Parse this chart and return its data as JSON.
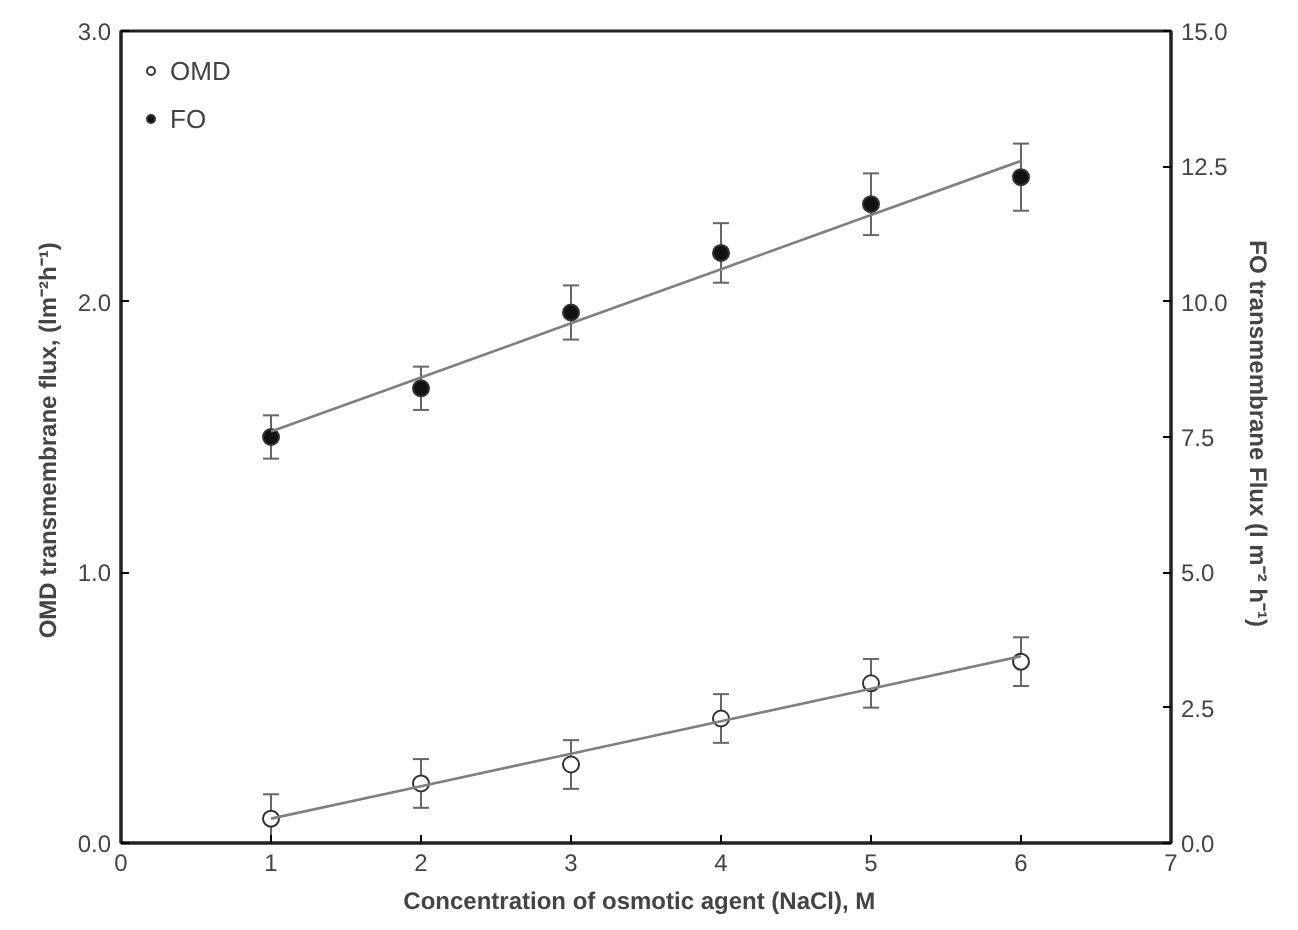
{
  "chart_data": {
    "type": "scatter",
    "xlabel": "Concentration of osmotic agent (NaCl),   M",
    "ylabel": "OMD  transmembrane flux, (lm⁻²h⁻¹)",
    "y2label": "FO  transmembrane Flux (l m⁻² h⁻¹)",
    "x": [
      1,
      2,
      3,
      4,
      5,
      6
    ],
    "series": [
      {
        "name": "OMD",
        "color": "#ffffff",
        "values": [
          0.09,
          0.22,
          0.29,
          0.46,
          0.59,
          0.67
        ],
        "errors": [
          0.09,
          0.09,
          0.09,
          0.09,
          0.09,
          0.09
        ]
      },
      {
        "name": "FO",
        "color": "#111111",
        "axis": "y2",
        "values": [
          7.5,
          8.4,
          9.8,
          10.9,
          11.8,
          12.3
        ],
        "errors": [
          0.4,
          0.4,
          0.5,
          0.55,
          0.57,
          0.62
        ]
      },
      {
        "type": "line",
        "color": "#808080",
        "values": [
          0.09,
          0.21,
          0.33,
          0.45,
          0.57,
          0.69
        ],
        "marker": "none"
      },
      {
        "type": "line",
        "color": "#808080",
        "axis": "y2",
        "values": [
          7.6,
          8.6,
          9.6,
          10.6,
          11.6,
          12.6
        ],
        "marker": "none"
      }
    ],
    "xlim": [
      0,
      7
    ],
    "xticks": [
      0,
      1,
      2,
      3,
      4,
      5,
      6,
      7
    ],
    "ylim": [
      0,
      3
    ],
    "yticks": [
      {
        "value": 0,
        "label": "0.0"
      },
      {
        "value": 1,
        "label": "1.0"
      },
      {
        "value": 2,
        "label": "2.0"
      },
      {
        "value": 3,
        "label": "3.0"
      }
    ],
    "y2lim": [
      0,
      15
    ],
    "y2ticks": [
      {
        "value": 0,
        "label": "0.0"
      },
      {
        "value": 2.5,
        "label": "2.5"
      },
      {
        "value": 5,
        "label": "5.0"
      },
      {
        "value": 7.5,
        "label": "7.5"
      },
      {
        "value": 10,
        "label": "10.0"
      },
      {
        "value": 12.5,
        "label": "12.5"
      },
      {
        "value": 15,
        "label": "15.0"
      }
    ],
    "marker": "circle",
    "grid": false,
    "legend": "top left"
  }
}
